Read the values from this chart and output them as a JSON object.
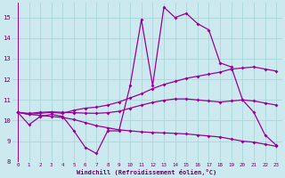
{
  "background_color": "#cde9f0",
  "grid_color": "#a8d8d8",
  "line_color": "#990099",
  "xlabel": "Windchill (Refroidissement éolien,°C)",
  "xlabel_color": "#660066",
  "tick_color": "#660066",
  "ylim": [
    8,
    15.7
  ],
  "xlim": [
    -0.5,
    23.5
  ],
  "yticks": [
    8,
    9,
    10,
    11,
    12,
    13,
    14,
    15
  ],
  "xticks": [
    0,
    1,
    2,
    3,
    4,
    5,
    6,
    7,
    8,
    9,
    10,
    11,
    12,
    13,
    14,
    15,
    16,
    17,
    18,
    19,
    20,
    21,
    22,
    23
  ],
  "series": [
    [
      10.4,
      9.8,
      10.2,
      10.3,
      10.2,
      9.5,
      8.7,
      8.4,
      9.5,
      9.5,
      11.7,
      14.9,
      11.7,
      15.5,
      15.0,
      15.2,
      14.7,
      14.4,
      12.8,
      12.6,
      11.0,
      10.4,
      9.3,
      8.8
    ],
    [
      10.4,
      10.3,
      10.35,
      10.4,
      10.35,
      10.5,
      10.6,
      10.65,
      10.75,
      10.9,
      11.1,
      11.3,
      11.55,
      11.75,
      11.9,
      12.05,
      12.15,
      12.25,
      12.35,
      12.5,
      12.55,
      12.6,
      12.5,
      12.4
    ],
    [
      10.4,
      10.35,
      10.4,
      10.42,
      10.4,
      10.38,
      10.36,
      10.35,
      10.38,
      10.45,
      10.6,
      10.75,
      10.88,
      10.98,
      11.05,
      11.05,
      11.0,
      10.95,
      10.9,
      10.95,
      11.0,
      10.95,
      10.85,
      10.75
    ],
    [
      10.4,
      10.3,
      10.25,
      10.2,
      10.15,
      10.05,
      9.9,
      9.75,
      9.65,
      9.55,
      9.5,
      9.45,
      9.42,
      9.4,
      9.38,
      9.35,
      9.3,
      9.25,
      9.2,
      9.1,
      9.0,
      8.95,
      8.85,
      8.75
    ]
  ]
}
